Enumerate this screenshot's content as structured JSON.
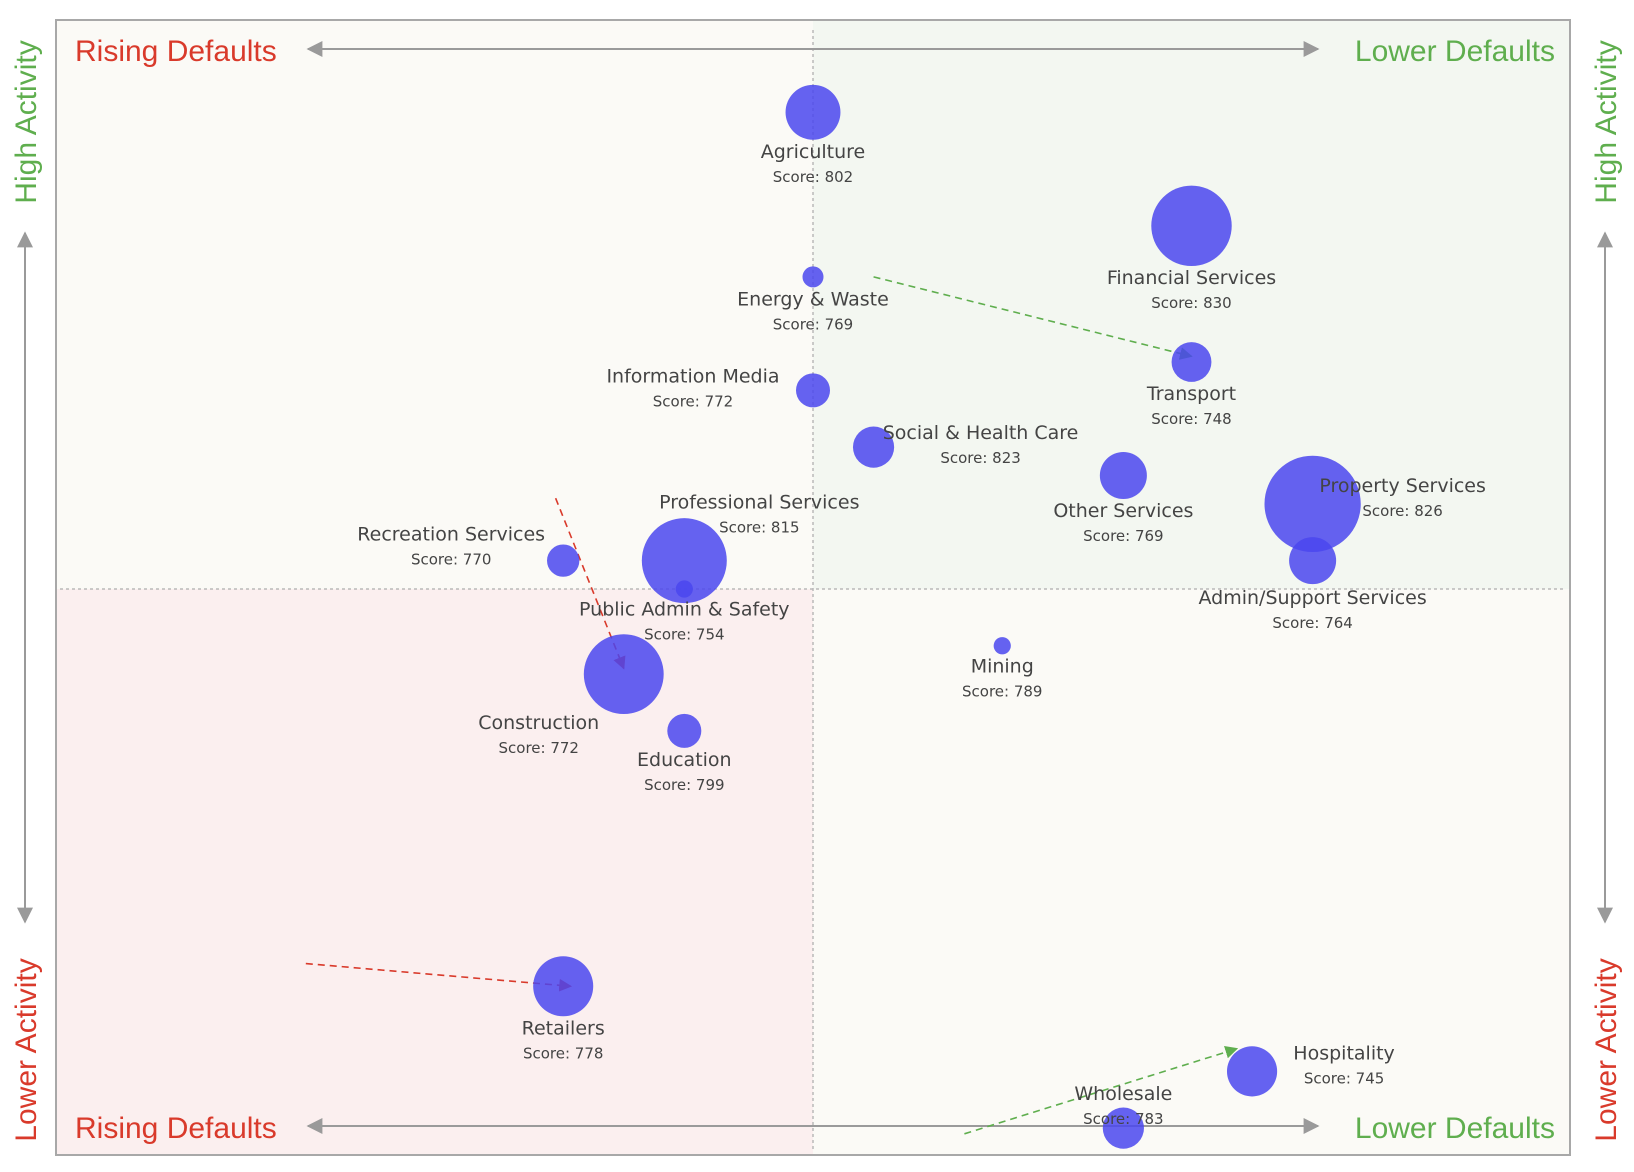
{
  "colors": {
    "rising": "#d93a2b",
    "lower": "#5fae4e",
    "bubble": "#4a46ee",
    "quad_top_left": "#fbfaf6",
    "quad_top_right": "#f3f7f1",
    "quad_bottom_left": "#fbefef",
    "quad_bottom_right": "#fbfaf6",
    "axis_arrow": "#9a9a9a",
    "divider": "#b9b9b9"
  },
  "labels": {
    "top_left": "Rising Defaults",
    "top_right": "Lower Defaults",
    "bottom_left": "Rising Defaults",
    "bottom_right": "Lower Defaults",
    "left_top": "High Activity",
    "left_bottom": "Lower Activity",
    "right_top": "High Activity",
    "right_bottom": "Lower Activity"
  },
  "score_prefix": "Score: ",
  "chart_data": {
    "type": "scatter",
    "title": "",
    "xlabel": "",
    "ylabel": "",
    "xlim": [
      -1,
      1
    ],
    "ylim": [
      -1,
      1
    ],
    "grid": false,
    "legend": "none",
    "points": [
      {
        "name": "Agriculture",
        "score": 802,
        "x": 0.0,
        "y": 0.84,
        "size": 0.26
      },
      {
        "name": "Financial Services",
        "score": 830,
        "x": 0.5,
        "y": 0.64,
        "size": 0.62
      },
      {
        "name": "Energy & Waste",
        "score": 769,
        "x": 0.0,
        "y": 0.55,
        "size": 0.02
      },
      {
        "name": "Transport",
        "score": 748,
        "x": 0.5,
        "y": 0.4,
        "size": 0.12
      },
      {
        "name": "Information Media",
        "score": 772,
        "x": 0.0,
        "y": 0.35,
        "size": 0.08
      },
      {
        "name": "Social & Health Care",
        "score": 823,
        "x": 0.08,
        "y": 0.25,
        "size": 0.13
      },
      {
        "name": "Other Services",
        "score": 769,
        "x": 0.41,
        "y": 0.2,
        "size": 0.18
      },
      {
        "name": "Property Services",
        "score": 826,
        "x": 0.66,
        "y": 0.15,
        "size": 0.92
      },
      {
        "name": "Professional Services",
        "score": 815,
        "x": -0.17,
        "y": 0.05,
        "size": 0.7
      },
      {
        "name": "Recreation Services",
        "score": 770,
        "x": -0.33,
        "y": 0.05,
        "size": 0.07
      },
      {
        "name": "Admin/Support Services",
        "score": 764,
        "x": 0.66,
        "y": 0.05,
        "size": 0.18
      },
      {
        "name": "Public Admin & Safety",
        "score": 754,
        "x": -0.17,
        "y": 0.0,
        "size": 0.01
      },
      {
        "name": "Mining",
        "score": 789,
        "x": 0.25,
        "y": -0.1,
        "size": 0.01
      },
      {
        "name": "Construction",
        "score": 772,
        "x": -0.25,
        "y": -0.15,
        "size": 0.61
      },
      {
        "name": "Education",
        "score": 799,
        "x": -0.17,
        "y": -0.25,
        "size": 0.08
      },
      {
        "name": "Retailers",
        "score": 778,
        "x": -0.33,
        "y": -0.7,
        "size": 0.32
      },
      {
        "name": "Hospitality",
        "score": 745,
        "x": 0.58,
        "y": -0.85,
        "size": 0.21
      },
      {
        "name": "Wholesale",
        "score": 783,
        "x": 0.41,
        "y": -0.95,
        "size": 0.13
      }
    ],
    "movement_arrows": [
      {
        "color": "lower",
        "from": [
          0.08,
          0.55
        ],
        "to": [
          0.5,
          0.41
        ]
      },
      {
        "color": "rising",
        "from": [
          -0.34,
          0.16
        ],
        "to": [
          -0.25,
          -0.14
        ]
      },
      {
        "color": "rising",
        "from": [
          -0.67,
          -0.66
        ],
        "to": [
          -0.32,
          -0.7
        ]
      },
      {
        "color": "lower",
        "from": [
          0.2,
          -0.96
        ],
        "to": [
          0.56,
          -0.81
        ]
      }
    ]
  }
}
